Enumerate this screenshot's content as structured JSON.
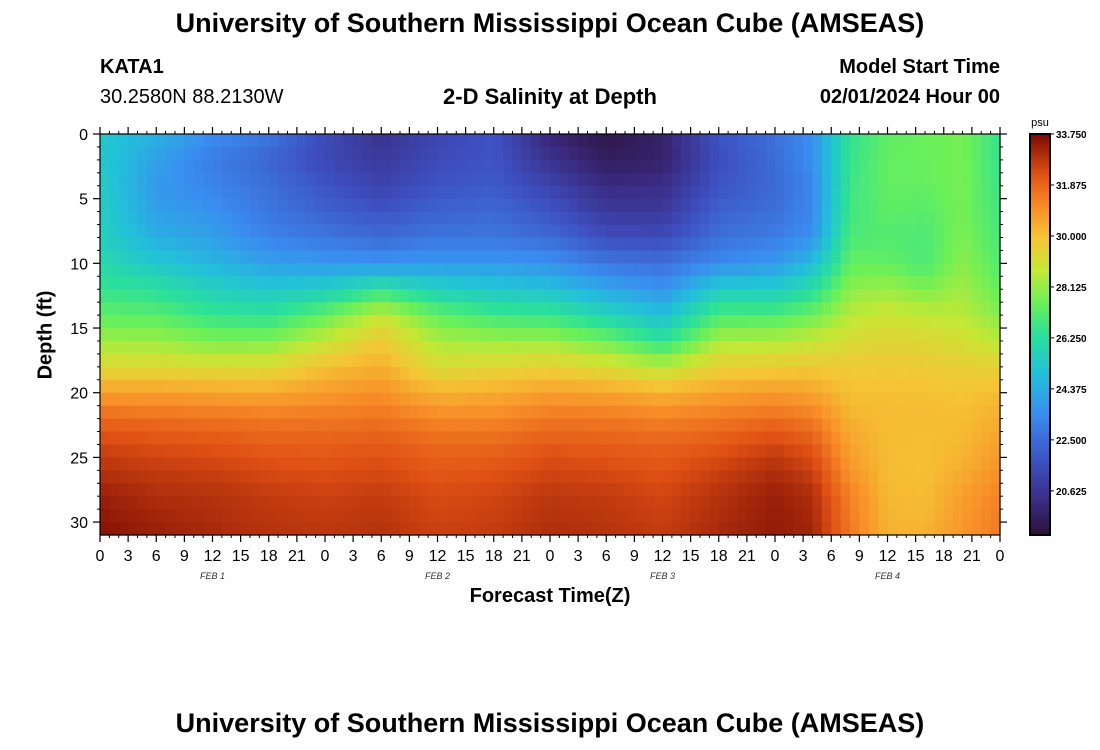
{
  "header": {
    "title": "University of Southern Mississippi Ocean Cube (AMSEAS)",
    "station": "KATA1",
    "location": "30.2580N  88.2130W",
    "subtitle": "2-D Salinity at Depth",
    "model_label": "Model Start Time",
    "model_start": "02/01/2024 Hour 00"
  },
  "footer": {
    "title": "University of Southern Mississippi Ocean Cube (AMSEAS)"
  },
  "chart_data": {
    "type": "heatmap",
    "title": "2-D Salinity at Depth",
    "xlabel": "Forecast Time(Z)",
    "ylabel": "Depth (ft)",
    "units": "psu",
    "x_hours_range": [
      0,
      96
    ],
    "ylim": [
      0,
      31
    ],
    "x_tick_hours": [
      0,
      3,
      6,
      9,
      12,
      15,
      18,
      21,
      24,
      27,
      30,
      33,
      36,
      39,
      42,
      45,
      48,
      51,
      54,
      57,
      60,
      63,
      66,
      69,
      72,
      75,
      78,
      81,
      84,
      87,
      90,
      93,
      96
    ],
    "x_tick_labels": [
      "0",
      "3",
      "6",
      "9",
      "12",
      "15",
      "18",
      "21",
      "0",
      "3",
      "6",
      "9",
      "12",
      "15",
      "18",
      "21",
      "0",
      "3",
      "6",
      "9",
      "12",
      "15",
      "18",
      "21",
      "0",
      "3",
      "6",
      "9",
      "12",
      "15",
      "18",
      "21",
      "0"
    ],
    "date_labels": [
      {
        "hour": 12,
        "label": "FEB 1"
      },
      {
        "hour": 36,
        "label": "FEB 2"
      },
      {
        "hour": 60,
        "label": "FEB 3"
      },
      {
        "hour": 84,
        "label": "FEB 4"
      }
    ],
    "y_ticks": [
      0,
      5,
      10,
      15,
      20,
      25,
      30
    ],
    "y_tick_labels": [
      "0",
      "5",
      "10",
      "15",
      "20",
      "25",
      "30"
    ],
    "colorbar": {
      "min": 19.0,
      "max": 33.75,
      "ticks": [
        33.75,
        31.875,
        30.0,
        28.125,
        26.25,
        24.375,
        22.5,
        20.625
      ],
      "tick_labels": [
        "33.750",
        "31.875",
        "30.000",
        "28.125",
        "26.250",
        "24.375",
        "22.500",
        "20.625"
      ],
      "stops": [
        [
          0.0,
          "#2a1238"
        ],
        [
          0.08,
          "#3a2a80"
        ],
        [
          0.18,
          "#3e4fc0"
        ],
        [
          0.3,
          "#3a8cf0"
        ],
        [
          0.4,
          "#22c0da"
        ],
        [
          0.5,
          "#2be09a"
        ],
        [
          0.58,
          "#6cf058"
        ],
        [
          0.66,
          "#c4e835"
        ],
        [
          0.74,
          "#f5c535"
        ],
        [
          0.82,
          "#f88c28"
        ],
        [
          0.9,
          "#e05014"
        ],
        [
          1.0,
          "#7a0a04"
        ]
      ]
    },
    "depths_ft": [
      0,
      2,
      4,
      6,
      8,
      10,
      12,
      14,
      16,
      18,
      20,
      22,
      24,
      26,
      28,
      31
    ],
    "time_hours": [
      0,
      6,
      12,
      18,
      24,
      30,
      36,
      42,
      48,
      54,
      60,
      66,
      72,
      76,
      80,
      84,
      88,
      92,
      96
    ],
    "salinity_psu": [
      [
        25.2,
        24.5,
        23.5,
        22.8,
        21.5,
        20.5,
        21.3,
        21.8,
        20.0,
        19.3,
        19.8,
        21.8,
        22.6,
        23.5,
        26.5,
        27.3,
        27.5,
        27.7,
        26.5
      ],
      [
        25.3,
        24.0,
        23.0,
        22.3,
        21.4,
        20.8,
        21.5,
        21.8,
        20.5,
        19.6,
        19.8,
        21.6,
        22.5,
        23.5,
        26.6,
        27.4,
        27.5,
        27.7,
        26.6
      ],
      [
        25.4,
        23.8,
        23.2,
        22.6,
        21.8,
        21.2,
        21.8,
        22.0,
        21.2,
        20.2,
        20.3,
        21.8,
        22.4,
        23.3,
        26.7,
        27.4,
        27.4,
        27.7,
        26.7
      ],
      [
        25.5,
        24.0,
        23.6,
        22.8,
        22.2,
        21.8,
        22.2,
        22.4,
        21.8,
        20.8,
        20.8,
        22.2,
        22.6,
        23.3,
        26.8,
        27.3,
        27.2,
        27.7,
        26.8
      ],
      [
        25.6,
        24.4,
        24.0,
        23.2,
        22.8,
        22.5,
        22.8,
        22.8,
        22.5,
        21.6,
        21.5,
        22.6,
        23.0,
        23.6,
        27.0,
        27.1,
        27.0,
        27.8,
        26.9
      ],
      [
        26.0,
        25.2,
        24.6,
        24.0,
        23.8,
        23.6,
        23.8,
        23.8,
        23.6,
        22.8,
        22.6,
        23.4,
        23.8,
        24.8,
        27.4,
        27.4,
        27.0,
        28.0,
        27.1
      ],
      [
        26.6,
        26.3,
        25.6,
        25.2,
        25.5,
        26.5,
        25.6,
        25.2,
        25.0,
        24.2,
        23.6,
        25.4,
        25.4,
        26.2,
        28.0,
        28.2,
        27.8,
        28.3,
        27.4
      ],
      [
        27.3,
        27.2,
        26.6,
        26.4,
        27.4,
        28.8,
        27.4,
        26.8,
        26.6,
        25.8,
        24.9,
        27.0,
        27.0,
        27.5,
        28.6,
        28.9,
        28.7,
        28.6,
        27.9
      ],
      [
        28.2,
        28.2,
        27.8,
        27.8,
        28.8,
        29.8,
        28.4,
        28.2,
        28.2,
        27.6,
        26.4,
        28.4,
        28.5,
        28.8,
        29.2,
        29.4,
        29.3,
        29.1,
        28.6
      ],
      [
        29.3,
        29.3,
        29.2,
        29.3,
        30.0,
        30.4,
        29.2,
        29.4,
        29.6,
        29.2,
        28.6,
        29.6,
        29.7,
        29.8,
        29.7,
        29.8,
        29.7,
        29.6,
        29.5
      ],
      [
        30.7,
        30.7,
        30.6,
        30.5,
        30.8,
        31.0,
        30.3,
        30.4,
        30.7,
        30.6,
        30.3,
        30.6,
        30.8,
        30.6,
        30.0,
        30.0,
        30.0,
        29.9,
        30.1
      ],
      [
        31.8,
        31.7,
        31.6,
        31.5,
        31.5,
        31.6,
        31.2,
        31.2,
        31.5,
        31.5,
        31.3,
        31.5,
        31.7,
        31.4,
        30.3,
        30.1,
        30.1,
        30.1,
        30.4
      ],
      [
        32.5,
        32.3,
        32.2,
        32.0,
        32.0,
        32.1,
        31.8,
        31.8,
        32.1,
        32.0,
        31.9,
        32.1,
        32.5,
        32.1,
        30.6,
        30.1,
        30.0,
        30.2,
        30.7
      ],
      [
        32.9,
        32.7,
        32.6,
        32.4,
        32.3,
        32.4,
        32.1,
        32.2,
        32.5,
        32.4,
        32.2,
        32.6,
        33.0,
        32.6,
        30.9,
        30.1,
        30.0,
        30.4,
        31.0
      ],
      [
        33.3,
        33.0,
        32.9,
        32.7,
        32.6,
        32.7,
        32.4,
        32.5,
        32.8,
        32.7,
        32.5,
        32.9,
        33.3,
        33.0,
        31.3,
        30.2,
        30.1,
        30.7,
        31.3
      ],
      [
        33.6,
        33.3,
        33.1,
        32.9,
        32.8,
        32.9,
        32.6,
        32.7,
        33.0,
        32.9,
        32.7,
        33.1,
        33.4,
        33.2,
        31.5,
        30.3,
        30.3,
        30.9,
        31.5
      ]
    ]
  }
}
